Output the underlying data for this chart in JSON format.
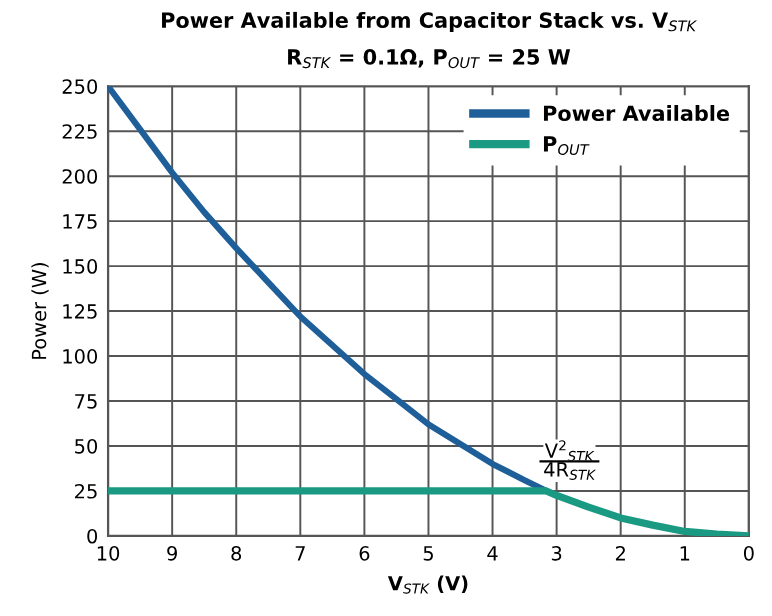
{
  "chart_data": {
    "type": "line",
    "title": "Power Available from Capacitor Stack vs. V$_{STK}$",
    "subtitle": "R$_{STK}$ = 0.1Ω, P$_{OUT}$ = 25 W",
    "xlabel": "V$_{STK}$ (V)",
    "ylabel": "Power (W)",
    "x": [
      10,
      9.5,
      9,
      8.5,
      8,
      7.5,
      7,
      6.5,
      6,
      5.5,
      5,
      4.5,
      4,
      3.5,
      3.16,
      3,
      2.5,
      2,
      1.5,
      1,
      0.5,
      0
    ],
    "series": [
      {
        "name": "Power Available",
        "color": "#1f5f99",
        "values": [
          250,
          226,
          202,
          180,
          160,
          141,
          122,
          106,
          90,
          76,
          62,
          51,
          40,
          31,
          25,
          null,
          null,
          null,
          null,
          null,
          null,
          null
        ]
      },
      {
        "name": "P$_{OUT}$",
        "color": "#1a9a82",
        "values": [
          25,
          25,
          25,
          25,
          25,
          25,
          25,
          25,
          25,
          25,
          25,
          25,
          25,
          25,
          25,
          22.5,
          16,
          10,
          6,
          2.5,
          1,
          0
        ]
      }
    ],
    "annotations": [
      {
        "text": "V$^{2}$$_{STK}$",
        "x": 2.8,
        "y": 47
      },
      {
        "text": "4R$_{STK}$",
        "x": 2.8,
        "y": 36
      }
    ],
    "xlim": [
      10,
      0
    ],
    "ylim": [
      0,
      250
    ],
    "xticks": [
      10,
      9,
      8,
      7,
      6,
      5,
      4,
      3,
      2,
      1,
      0
    ],
    "yticks": [
      0,
      25,
      50,
      75,
      100,
      125,
      150,
      175,
      200,
      225,
      250
    ],
    "grid": true,
    "legend": "top right",
    "marker": "none",
    "line_style": "solid"
  }
}
